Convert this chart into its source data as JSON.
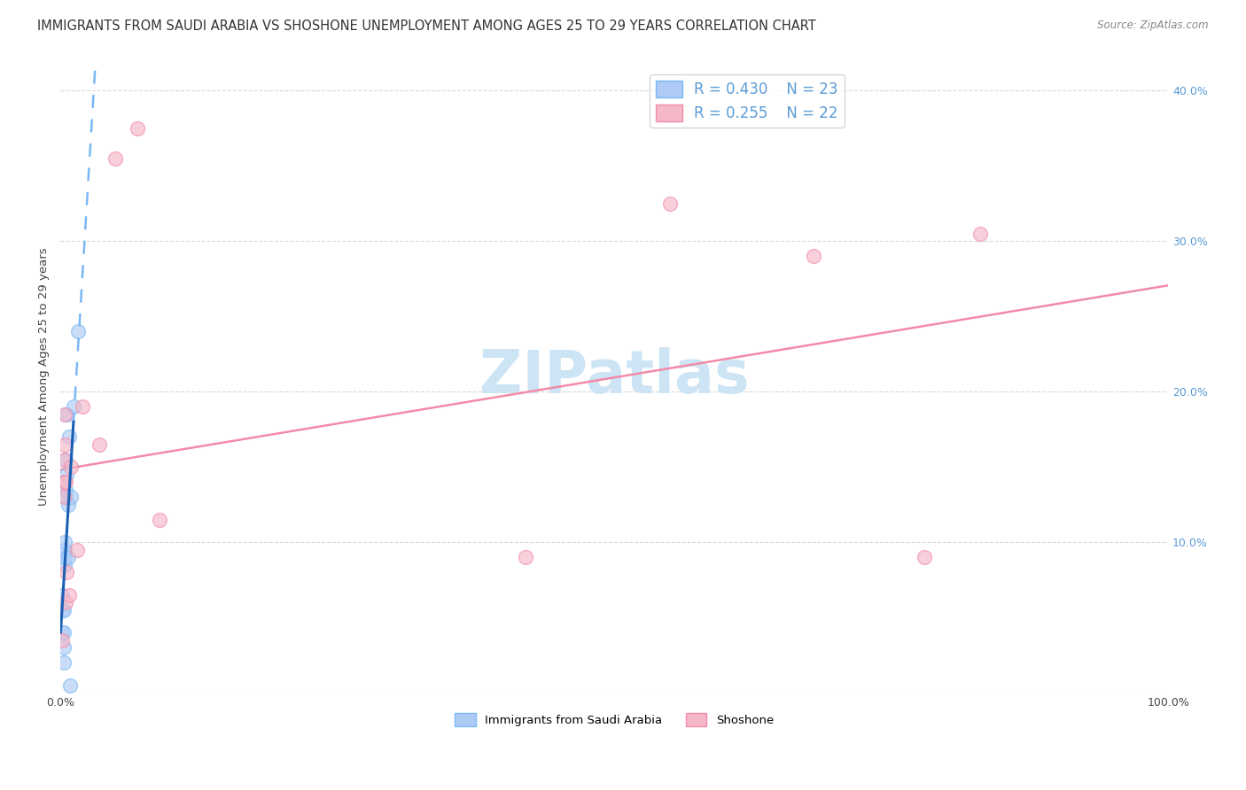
{
  "title": "IMMIGRANTS FROM SAUDI ARABIA VS SHOSHONE UNEMPLOYMENT AMONG AGES 25 TO 29 YEARS CORRELATION CHART",
  "source": "Source: ZipAtlas.com",
  "ylabel": "Unemployment Among Ages 25 to 29 years",
  "legend_label_blue": "Immigrants from Saudi Arabia",
  "legend_label_pink": "Shoshone",
  "R_blue": 0.43,
  "N_blue": 23,
  "R_pink": 0.255,
  "N_pink": 22,
  "xlim": [
    0.0,
    1.0
  ],
  "ylim": [
    0.0,
    0.42
  ],
  "xticks": [
    0.0,
    0.2,
    0.4,
    0.6,
    0.8,
    1.0
  ],
  "yticks": [
    0.0,
    0.1,
    0.2,
    0.3,
    0.4
  ],
  "blue_scatter_x": [
    0.002,
    0.002,
    0.002,
    0.003,
    0.003,
    0.003,
    0.003,
    0.004,
    0.004,
    0.004,
    0.004,
    0.005,
    0.005,
    0.005,
    0.006,
    0.006,
    0.007,
    0.007,
    0.008,
    0.009,
    0.01,
    0.012,
    0.016
  ],
  "blue_scatter_y": [
    0.04,
    0.055,
    0.065,
    0.02,
    0.03,
    0.04,
    0.055,
    0.085,
    0.09,
    0.095,
    0.1,
    0.13,
    0.135,
    0.155,
    0.145,
    0.185,
    0.09,
    0.125,
    0.17,
    0.005,
    0.13,
    0.19,
    0.24
  ],
  "pink_scatter_x": [
    0.002,
    0.003,
    0.003,
    0.004,
    0.004,
    0.004,
    0.005,
    0.005,
    0.006,
    0.008,
    0.01,
    0.015,
    0.02,
    0.035,
    0.05,
    0.07,
    0.09,
    0.42,
    0.55,
    0.68,
    0.78,
    0.83
  ],
  "pink_scatter_y": [
    0.035,
    0.13,
    0.155,
    0.14,
    0.165,
    0.185,
    0.06,
    0.14,
    0.08,
    0.065,
    0.15,
    0.095,
    0.19,
    0.165,
    0.355,
    0.375,
    0.115,
    0.09,
    0.325,
    0.29,
    0.09,
    0.305
  ],
  "blue_line_color": "#7ab8f5",
  "pink_line_color": "#f28ba8",
  "blue_solid_line_color": "#1a5fb4",
  "blue_scatter_facecolor": "#aecbf5",
  "pink_scatter_facecolor": "#f5b8c8",
  "scatter_size": 130,
  "scatter_alpha": 0.65,
  "background_color": "#ffffff",
  "grid_color": "#d8d8d8",
  "watermark": "ZIPatlas",
  "watermark_color": "#cde4f5",
  "title_fontsize": 10.5,
  "axis_label_fontsize": 9.5,
  "tick_fontsize": 9,
  "legend_fontsize": 12,
  "right_tick_color": "#5b9bd5"
}
